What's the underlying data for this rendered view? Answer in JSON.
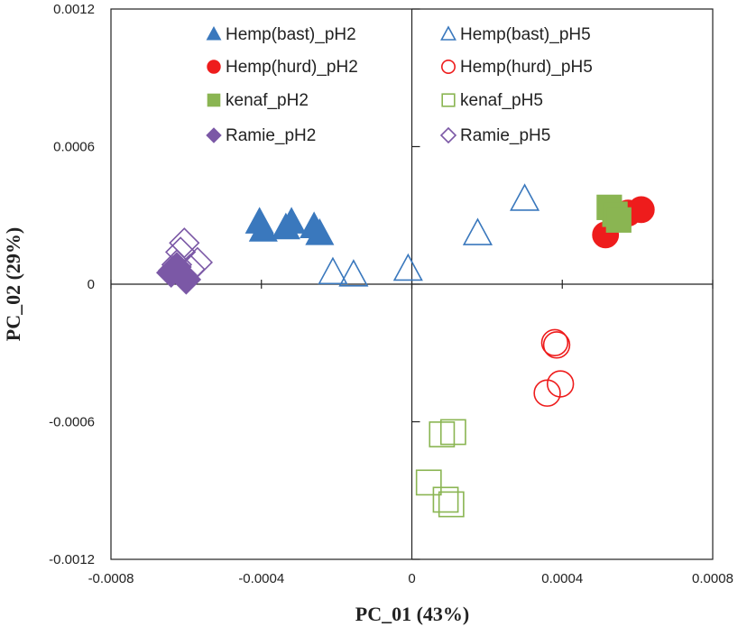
{
  "chart_data": {
    "type": "scatter",
    "xlabel": "PC_01 (43%)",
    "ylabel": "PC_02 (29%)",
    "xlim": [
      -0.0008,
      0.0008
    ],
    "ylim": [
      -0.0012,
      0.0012
    ],
    "x_ticks": [
      "-0.0008",
      "-0.0004",
      "0",
      "0.0004",
      "0.0008"
    ],
    "x_tick_values": [
      -0.0008,
      -0.0004,
      0,
      0.0004,
      0.0008
    ],
    "y_ticks": [
      "0.0012",
      "0.0006",
      "0",
      "-0.0006",
      "-0.0012"
    ],
    "y_tick_values": [
      0.0012,
      0.0006,
      0,
      -0.0006,
      -0.0012
    ],
    "grid": false,
    "legend_position": "top",
    "series": [
      {
        "name": "Hemp(bast)_pH2",
        "marker": "triangle",
        "filled": true,
        "color": "#3a78bd",
        "points": [
          [
            -0.000405,
            0.00027
          ],
          [
            -0.000395,
            0.000235
          ],
          [
            -0.00032,
            0.00027
          ],
          [
            -0.000335,
            0.000245
          ],
          [
            -0.00026,
            0.00025
          ],
          [
            -0.000245,
            0.00022
          ]
        ]
      },
      {
        "name": "Hemp(bast)_pH5",
        "marker": "triangle",
        "filled": false,
        "color": "#3a78bd",
        "points": [
          [
            -0.00021,
            5e-05
          ],
          [
            -0.000155,
            4e-05
          ],
          [
            -1e-05,
            6.5e-05
          ],
          [
            0.000175,
            0.00022
          ],
          [
            0.0003,
            0.00037
          ]
        ]
      },
      {
        "name": "Hemp(hurd)_pH2",
        "marker": "circle",
        "filled": true,
        "color": "#ee1c1c",
        "points": [
          [
            0.000515,
            0.000215
          ],
          [
            0.000575,
            0.00031
          ],
          [
            0.00061,
            0.000325
          ]
        ]
      },
      {
        "name": "Hemp(hurd)_pH5",
        "marker": "circle",
        "filled": false,
        "color": "#ee1c1c",
        "points": [
          [
            0.00038,
            -0.000255
          ],
          [
            0.000385,
            -0.000265
          ],
          [
            0.000395,
            -0.000435
          ],
          [
            0.00036,
            -0.000475
          ]
        ]
      },
      {
        "name": "kenaf_pH2",
        "marker": "square",
        "filled": true,
        "color": "#8ab552",
        "points": [
          [
            0.000525,
            0.000335
          ],
          [
            0.00054,
            0.000305
          ],
          [
            0.00055,
            0.00028
          ]
        ]
      },
      {
        "name": "kenaf_pH5",
        "marker": "square",
        "filled": false,
        "color": "#8ab552",
        "points": [
          [
            8e-05,
            -0.000655
          ],
          [
            0.00011,
            -0.000645
          ],
          [
            4.5e-05,
            -0.000865
          ],
          [
            9e-05,
            -0.00094
          ],
          [
            0.000105,
            -0.00096
          ]
        ]
      },
      {
        "name": "Ramie_pH2",
        "marker": "diamond",
        "filled": true,
        "color": "#7b58a6",
        "points": [
          [
            -0.00064,
            5e-05
          ],
          [
            -0.000625,
            7.5e-05
          ],
          [
            -0.00061,
            4e-05
          ],
          [
            -0.0006,
            2e-05
          ],
          [
            -0.000635,
            6e-05
          ]
        ]
      },
      {
        "name": "Ramie_pH5",
        "marker": "diamond",
        "filled": false,
        "color": "#7b58a6",
        "points": [
          [
            -0.000605,
            0.00018
          ],
          [
            -0.000615,
            0.00014
          ],
          [
            -0.00057,
            9.5e-05
          ],
          [
            -0.000625,
            8.5e-05
          ],
          [
            -0.00059,
            6.5e-05
          ]
        ]
      }
    ]
  }
}
